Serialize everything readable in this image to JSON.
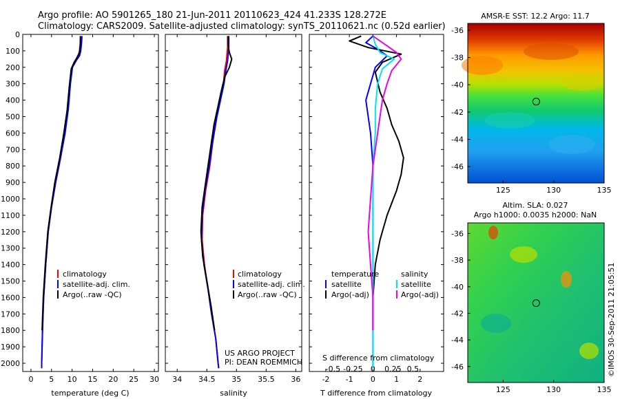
{
  "title": {
    "line1": "Argo profile: AO 5901265_180 21-Jun-2011 20110623_424 41.233S 128.272E",
    "line2": "Climatology: CARS2009. Satellite-adjusted climatology: synTS_20110621.nc (0.52d earlier)"
  },
  "credits": {
    "project": "US ARGO PROJECT",
    "pi": "PI: DEAN ROEMMICH",
    "stamp": "©IMOS 30-Sep-2011 21:05:51"
  },
  "colors": {
    "climatology": "#ff0000",
    "satellite": "#0000ff",
    "argo": "#000000",
    "sal_satellite": "#00e5ee",
    "sal_argo": "#ee00ee"
  },
  "chart_data": [
    {
      "type": "line",
      "xlabel": "temperature (deg C)",
      "xlim": [
        -2,
        31
      ],
      "ylim": [
        0,
        2050
      ],
      "xticks": [
        0,
        5,
        10,
        15,
        20,
        25,
        30
      ],
      "yticks": [
        0,
        100,
        200,
        300,
        400,
        500,
        600,
        700,
        800,
        900,
        1000,
        1100,
        1200,
        1300,
        1400,
        1500,
        1600,
        1700,
        1800,
        1900,
        2000
      ],
      "legend": [
        "climatology",
        "satellite-adj. clim.",
        "Argo(..raw -QC)"
      ],
      "series": [
        {
          "name": "climatology",
          "color": "#ff0000",
          "points": [
            [
              12.1,
              10
            ],
            [
              12.0,
              50
            ],
            [
              11.8,
              100
            ],
            [
              11.5,
              130
            ],
            [
              10.8,
              160
            ],
            [
              10.0,
              200
            ],
            [
              9.5,
              300
            ],
            [
              9.0,
              450
            ],
            [
              8.2,
              600
            ],
            [
              7.2,
              750
            ],
            [
              6.0,
              900
            ],
            [
              5.0,
              1050
            ],
            [
              4.2,
              1200
            ],
            [
              3.6,
              1400
            ],
            [
              3.1,
              1600
            ],
            [
              2.8,
              1800
            ],
            [
              2.6,
              2000
            ],
            [
              2.6,
              2030
            ]
          ]
        },
        {
          "name": "satellite-adj. clim.",
          "color": "#0000ff",
          "points": [
            [
              12.4,
              10
            ],
            [
              12.3,
              50
            ],
            [
              12.1,
              100
            ],
            [
              11.8,
              130
            ],
            [
              11.0,
              160
            ],
            [
              10.1,
              200
            ],
            [
              9.6,
              300
            ],
            [
              9.1,
              450
            ],
            [
              8.3,
              600
            ],
            [
              7.2,
              750
            ],
            [
              6.0,
              900
            ],
            [
              5.0,
              1050
            ],
            [
              4.2,
              1200
            ],
            [
              3.6,
              1400
            ],
            [
              3.1,
              1600
            ],
            [
              2.8,
              1800
            ],
            [
              2.6,
              2000
            ],
            [
              2.6,
              2030
            ]
          ]
        },
        {
          "name": "Argo(..raw -QC)",
          "color": "#000000",
          "points": [
            [
              12.0,
              10
            ],
            [
              12.0,
              60
            ],
            [
              11.8,
              110
            ],
            [
              11.2,
              140
            ],
            [
              10.5,
              170
            ],
            [
              9.8,
              210
            ],
            [
              9.3,
              320
            ],
            [
              8.8,
              460
            ],
            [
              8.0,
              600
            ],
            [
              7.0,
              750
            ],
            [
              5.8,
              900
            ],
            [
              4.9,
              1050
            ],
            [
              4.1,
              1200
            ],
            [
              3.5,
              1400
            ],
            [
              3.0,
              1600
            ],
            [
              2.7,
              1800
            ]
          ]
        }
      ]
    },
    {
      "type": "line",
      "xlabel": "salinity",
      "xlim": [
        33.8,
        36.1
      ],
      "ylim": [
        0,
        2050
      ],
      "xticks": [
        34,
        34.5,
        35,
        35.5,
        36
      ],
      "xticklabels": [
        "34",
        "34.5",
        "35",
        "35.5",
        "36"
      ],
      "legend": [
        "climatology",
        "satellite-adj. clim.",
        "Argo(..raw -QC)"
      ],
      "series": [
        {
          "name": "climatology",
          "color": "#ff0000",
          "points": [
            [
              34.85,
              10
            ],
            [
              34.85,
              80
            ],
            [
              34.84,
              120
            ],
            [
              34.83,
              160
            ],
            [
              34.8,
              220
            ],
            [
              34.78,
              300
            ],
            [
              34.72,
              400
            ],
            [
              34.66,
              500
            ],
            [
              34.6,
              650
            ],
            [
              34.55,
              800
            ],
            [
              34.48,
              950
            ],
            [
              34.43,
              1100
            ],
            [
              34.42,
              1250
            ],
            [
              34.46,
              1400
            ],
            [
              34.52,
              1550
            ],
            [
              34.58,
              1700
            ],
            [
              34.65,
              1850
            ],
            [
              34.69,
              2000
            ],
            [
              34.7,
              2030
            ]
          ]
        },
        {
          "name": "satellite-adj. clim.",
          "color": "#0000ff",
          "points": [
            [
              34.87,
              10
            ],
            [
              34.87,
              80
            ],
            [
              34.86,
              120
            ],
            [
              34.85,
              160
            ],
            [
              34.82,
              220
            ],
            [
              34.79,
              300
            ],
            [
              34.73,
              400
            ],
            [
              34.67,
              500
            ],
            [
              34.6,
              650
            ],
            [
              34.54,
              800
            ],
            [
              34.47,
              950
            ],
            [
              34.42,
              1100
            ],
            [
              34.41,
              1250
            ],
            [
              34.45,
              1400
            ],
            [
              34.52,
              1550
            ],
            [
              34.58,
              1700
            ],
            [
              34.65,
              1850
            ],
            [
              34.69,
              2000
            ],
            [
              34.7,
              2030
            ]
          ]
        },
        {
          "name": "Argo(..raw -QC)",
          "color": "#000000",
          "points": [
            [
              34.86,
              10
            ],
            [
              34.86,
              70
            ],
            [
              34.88,
              110
            ],
            [
              34.92,
              150
            ],
            [
              34.88,
              200
            ],
            [
              34.8,
              260
            ],
            [
              34.74,
              350
            ],
            [
              34.68,
              450
            ],
            [
              34.62,
              550
            ],
            [
              34.56,
              700
            ],
            [
              34.48,
              900
            ],
            [
              34.42,
              1050
            ],
            [
              34.4,
              1200
            ],
            [
              34.43,
              1350
            ],
            [
              34.5,
              1500
            ],
            [
              34.57,
              1650
            ],
            [
              34.63,
              1800
            ]
          ]
        }
      ]
    },
    {
      "type": "line",
      "xlabel": "T difference from climatology",
      "top_axis_label": "S difference from climatology",
      "xlim": [
        -2.7,
        3.0
      ],
      "ylim": [
        0,
        2050
      ],
      "xticks": [
        -2,
        -1,
        0,
        1,
        2
      ],
      "xticklabels": [
        "-2",
        "-1",
        "0",
        "1",
        "2"
      ],
      "top_ticks": [
        -0.5,
        -0.25,
        0,
        0.25,
        0.5
      ],
      "top_ticklabels": [
        "-0.5",
        "-0.25",
        "0",
        "0.25",
        "0.5"
      ],
      "legend_left": {
        "title": "temperature",
        "items": [
          "satellite",
          "Argo(-adj)"
        ]
      },
      "legend_right": {
        "title": "salinity",
        "items": [
          "satellite",
          "Argo(-adj)"
        ]
      },
      "series": [
        {
          "name": "satellite",
          "color": "#0000ff",
          "points": [
            [
              0.0,
              10
            ],
            [
              -0.3,
              50
            ],
            [
              0.2,
              90
            ],
            [
              0.6,
              130
            ],
            [
              0.1,
              200
            ],
            [
              -0.1,
              300
            ],
            [
              -0.3,
              400
            ],
            [
              -0.2,
              500
            ],
            [
              -0.1,
              600
            ],
            [
              0.0,
              800
            ],
            [
              0.0,
              1000
            ],
            [
              0.0,
              1200
            ],
            [
              0.0,
              1400
            ],
            [
              0.0,
              1600
            ],
            [
              0.0,
              1800
            ],
            [
              0.0,
              2000
            ],
            [
              0.0,
              2030
            ]
          ]
        },
        {
          "name": "Argo(-adj)",
          "color": "#000000",
          "points": [
            [
              -0.5,
              10
            ],
            [
              -1.0,
              40
            ],
            [
              -0.2,
              80
            ],
            [
              1.2,
              120
            ],
            [
              0.4,
              170
            ],
            [
              0.1,
              230
            ],
            [
              0.3,
              350
            ],
            [
              0.6,
              450
            ],
            [
              0.8,
              550
            ],
            [
              1.1,
              650
            ],
            [
              1.3,
              750
            ],
            [
              1.2,
              850
            ],
            [
              1.0,
              950
            ],
            [
              0.6,
              1100
            ],
            [
              0.3,
              1250
            ],
            [
              0.1,
              1400
            ],
            [
              0.0,
              1600
            ],
            [
              0.0,
              1800
            ]
          ]
        },
        {
          "name": "satellite",
          "color": "#00e5ee",
          "points": [
            [
              0.0,
              10
            ],
            [
              0.1,
              60
            ],
            [
              0.3,
              110
            ],
            [
              0.9,
              150
            ],
            [
              0.4,
              210
            ],
            [
              0.2,
              300
            ],
            [
              0.1,
              450
            ],
            [
              0.1,
              600
            ],
            [
              0.0,
              800
            ],
            [
              0.0,
              1000
            ],
            [
              0.0,
              1300
            ],
            [
              0.0,
              1600
            ],
            [
              0.0,
              2030
            ]
          ]
        },
        {
          "name": "Argo(-adj)",
          "color": "#ee00ee",
          "points": [
            [
              0.0,
              10
            ],
            [
              0.5,
              60
            ],
            [
              1.0,
              110
            ],
            [
              1.2,
              150
            ],
            [
              0.8,
              220
            ],
            [
              0.6,
              300
            ],
            [
              0.4,
              400
            ],
            [
              0.3,
              500
            ],
            [
              0.2,
              600
            ],
            [
              0.0,
              800
            ],
            [
              -0.1,
              1000
            ],
            [
              -0.2,
              1200
            ],
            [
              -0.1,
              1400
            ],
            [
              0.0,
              1600
            ],
            [
              0.0,
              1800
            ]
          ]
        }
      ]
    },
    {
      "type": "heatmap",
      "title": "AMSR-E SST: 12.2 Argo: 11.7",
      "xlim": [
        121.5,
        135
      ],
      "ylim": [
        -47.2,
        -35.5
      ],
      "xticks": [
        125,
        130,
        135
      ],
      "yticks": [
        -36,
        -38,
        -40,
        -42,
        -44,
        -46
      ],
      "marker": {
        "lon": 128.272,
        "lat": -41.233
      }
    },
    {
      "type": "heatmap",
      "title_line1": "Altim. SLA: 0.027",
      "title_line2": "Argo h1000: 0.0035 h2000: NaN",
      "xlim": [
        121.5,
        135
      ],
      "ylim": [
        -47.2,
        -35.2
      ],
      "xticks": [
        125,
        130,
        135
      ],
      "yticks": [
        -36,
        -38,
        -40,
        -42,
        -44,
        -46
      ],
      "marker": {
        "lon": 128.272,
        "lat": -41.233
      }
    }
  ]
}
